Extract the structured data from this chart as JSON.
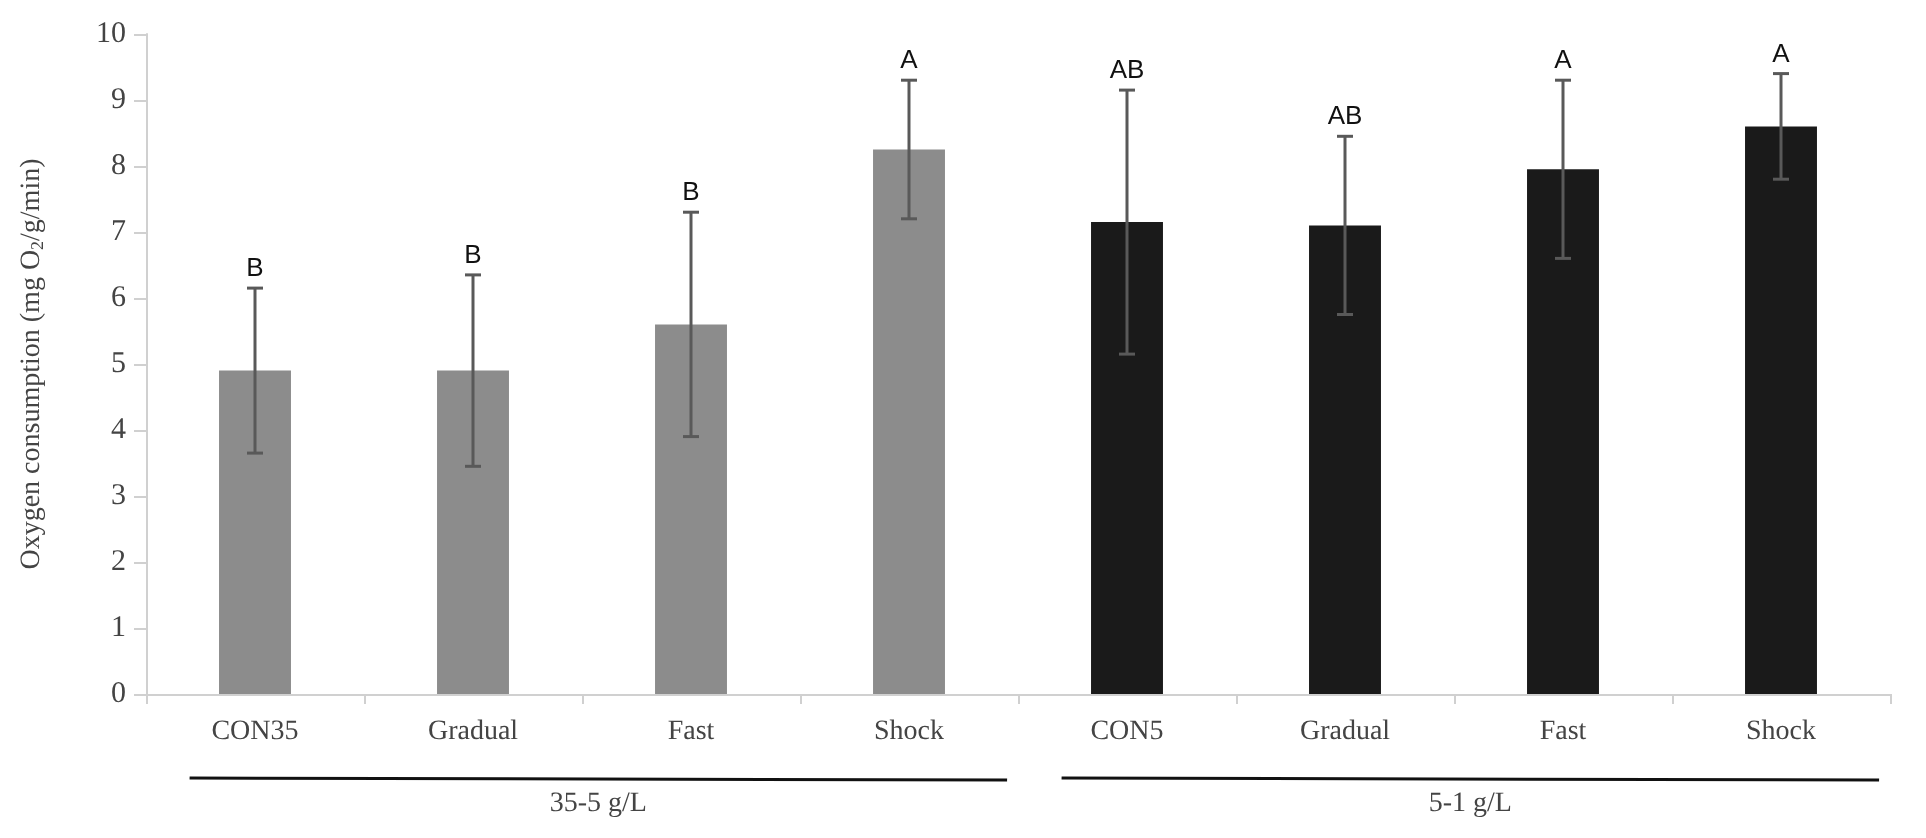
{
  "chart_data": {
    "type": "bar",
    "ylabel": "Oxygen consumption (mg O$_{2}$/g/min)",
    "categories": [
      "CON35",
      "Gradual",
      "Fast",
      "Shock",
      "CON5",
      "Gradual",
      "Fast",
      "Shock"
    ],
    "values": [
      4.9,
      4.9,
      5.6,
      8.25,
      7.15,
      7.1,
      7.95,
      8.6
    ],
    "colors": [
      "#8c8c8c",
      "#8c8c8c",
      "#8c8c8c",
      "#8c8c8c",
      "#1a1a1a",
      "#1a1a1a",
      "#1a1a1a",
      "#1a1a1a"
    ],
    "errors": [
      1.25,
      1.45,
      1.7,
      1.05,
      2.0,
      1.35,
      1.35,
      0.8
    ],
    "ylim": [
      0,
      10
    ],
    "yticks": [
      0,
      1,
      2,
      3,
      4,
      5,
      6,
      7,
      8,
      9,
      10
    ],
    "grid": false,
    "annotations": [
      "B",
      "B",
      "B",
      "A",
      "AB",
      "AB",
      "A",
      "A",
      "35-5 g/L",
      "5-1 g/L"
    ]
  }
}
